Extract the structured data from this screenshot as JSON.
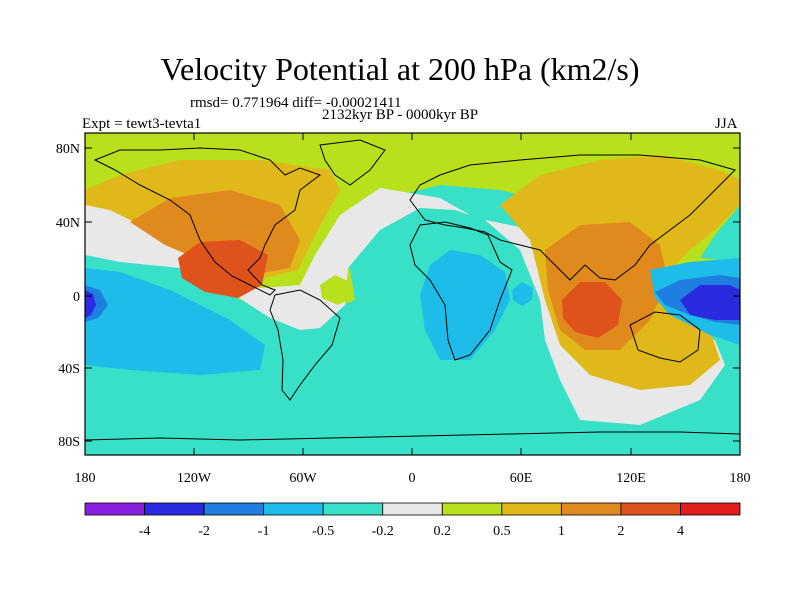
{
  "title": "Velocity Potential at 200 hPa (km2/s)",
  "stats": "rmsd= 0.771964 diff= -0.00021411",
  "period": "2132kyr BP - 0000kyr BP",
  "experiment": "Expt = tewt3-tevta1",
  "season": "JJA",
  "lat_ticks": [
    "80N",
    "40N",
    "0",
    "40S",
    "80S"
  ],
  "lon_ticks": [
    "180",
    "120W",
    "60W",
    "0",
    "60E",
    "120E",
    "180"
  ],
  "colorbar": {
    "labels": [
      "-4",
      "-2",
      "-1",
      "-0.5",
      "-0.2",
      "0.2",
      "0.5",
      "1",
      "2",
      "4"
    ],
    "colors": [
      "#8a1fe0",
      "#2a2ae0",
      "#1e7fe0",
      "#1ebce8",
      "#38e0c8",
      "#e8e8e8",
      "#b8e01c",
      "#e0b81a",
      "#e08a1e",
      "#e0521c",
      "#e01e1e"
    ]
  }
}
